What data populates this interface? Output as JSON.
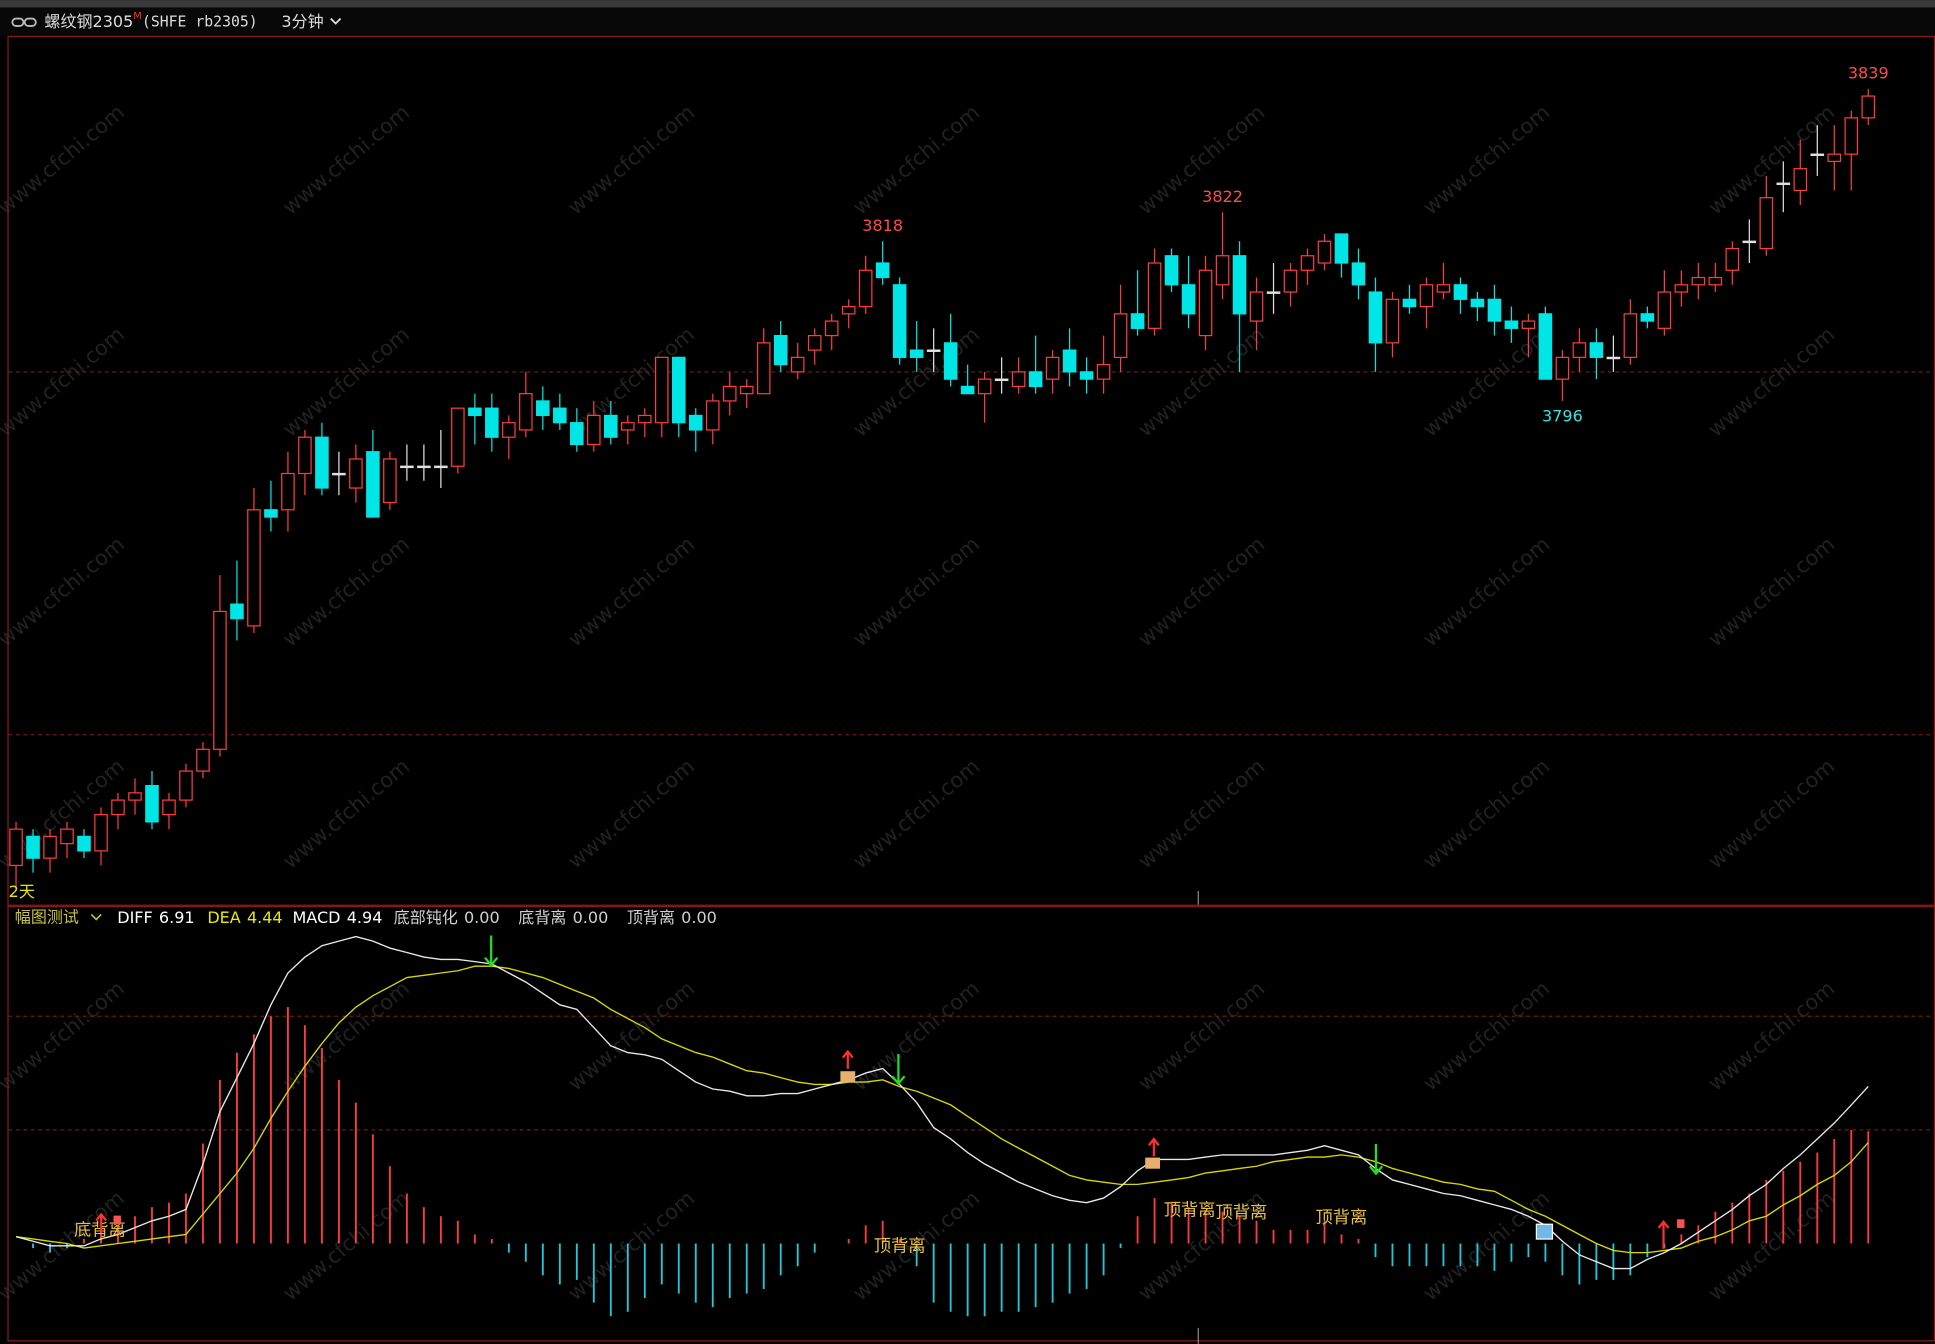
{
  "header": {
    "symbol": "螺纹钢2305",
    "badge": "M",
    "code": "(SHFE rb2305)",
    "period": "3分钟"
  },
  "watermark": "www.cfchi.com",
  "chart_data": [
    {
      "type": "candlestick",
      "corner_label": "2天",
      "ylim": [
        3726.6,
        3846.3
      ],
      "hlines": [
        3750,
        3800
      ],
      "up_color": "#ff3b3b",
      "down_color": "#00e5e5",
      "flat_color": "#e0e0e0",
      "candles": {
        "open": [
          3732,
          3736,
          3733,
          3735,
          3736,
          3734,
          3739,
          3741,
          3743,
          3739,
          3741,
          3745,
          3748,
          3768,
          3765,
          3781,
          3781,
          3786,
          3791,
          3786,
          3784,
          3789,
          3782,
          3787,
          3787,
          3787,
          3787,
          3795,
          3795,
          3791,
          3792,
          3796,
          3795,
          3793,
          3790,
          3794,
          3792,
          3793,
          3793,
          3802,
          3794,
          3792,
          3796,
          3797,
          3797,
          3805,
          3800,
          3803,
          3805,
          3808,
          3809,
          3815,
          3812,
          3803,
          3803,
          3804,
          3798,
          3797,
          3799,
          3798,
          3800,
          3799,
          3803,
          3800,
          3799,
          3802,
          3808,
          3806,
          3816,
          3812,
          3805,
          3812,
          3816,
          3807,
          3811,
          3811,
          3814,
          3815,
          3819,
          3815,
          3811,
          3804,
          3810,
          3809,
          3811,
          3812,
          3810,
          3810,
          3807,
          3806,
          3808,
          3799,
          3802,
          3804,
          3802,
          3802,
          3808,
          3806,
          3811,
          3812,
          3812,
          3814,
          3818,
          3817,
          3826,
          3825,
          3830,
          3829,
          3830,
          3835
        ],
        "high": [
          3738,
          3737,
          3737,
          3738,
          3737,
          3740,
          3742,
          3744,
          3745,
          3742,
          3746,
          3749,
          3772,
          3774,
          3784,
          3785,
          3789,
          3792,
          3793,
          3789,
          3790,
          3792,
          3789,
          3790,
          3790,
          3792,
          3795,
          3797,
          3797,
          3794,
          3800,
          3798,
          3797,
          3795,
          3796,
          3796,
          3794,
          3795,
          3802,
          3802,
          3795,
          3797,
          3800,
          3799,
          3806,
          3807,
          3804,
          3806,
          3808,
          3810,
          3816,
          3818,
          3813,
          3807,
          3806,
          3808,
          3801,
          3800,
          3802,
          3802,
          3805,
          3803,
          3806,
          3802,
          3805,
          3812,
          3814,
          3817,
          3817,
          3816,
          3816,
          3822,
          3818,
          3813,
          3815,
          3815,
          3817,
          3819,
          3819,
          3817,
          3813,
          3811,
          3812,
          3813,
          3815,
          3813,
          3811,
          3812,
          3809,
          3808,
          3809,
          3803,
          3806,
          3806,
          3805,
          3810,
          3809,
          3814,
          3814,
          3815,
          3815,
          3818,
          3821,
          3827,
          3829,
          3832,
          3834,
          3834,
          3836,
          3839
        ],
        "low": [
          3729,
          3731,
          3731,
          3733,
          3733,
          3732,
          3737,
          3739,
          3737,
          3737,
          3740,
          3744,
          3747,
          3763,
          3764,
          3778,
          3778,
          3783,
          3783,
          3783,
          3782,
          3780,
          3781,
          3785,
          3785,
          3784,
          3786,
          3790,
          3789,
          3788,
          3791,
          3792,
          3792,
          3789,
          3789,
          3790,
          3790,
          3791,
          3791,
          3791,
          3789,
          3790,
          3794,
          3795,
          3797,
          3800,
          3799,
          3801,
          3803,
          3806,
          3808,
          3812,
          3801,
          3800,
          3800,
          3798,
          3797,
          3793,
          3797,
          3797,
          3797,
          3797,
          3798,
          3797,
          3797,
          3800,
          3805,
          3805,
          3811,
          3806,
          3803,
          3810,
          3800,
          3803,
          3808,
          3809,
          3812,
          3814,
          3813,
          3810,
          3800,
          3802,
          3808,
          3806,
          3810,
          3808,
          3807,
          3805,
          3804,
          3802,
          3799,
          3796,
          3800,
          3799,
          3800,
          3801,
          3806,
          3805,
          3809,
          3810,
          3811,
          3812,
          3815,
          3816,
          3822,
          3823,
          3827,
          3825,
          3825,
          3834
        ],
        "close": [
          3737,
          3733,
          3736,
          3737,
          3734,
          3739,
          3741,
          3742,
          3738,
          3741,
          3745,
          3748,
          3767,
          3766,
          3781,
          3780,
          3786,
          3791,
          3784,
          3786,
          3788,
          3780,
          3788,
          3787,
          3787,
          3787,
          3795,
          3794,
          3791,
          3793,
          3797,
          3794,
          3793,
          3790,
          3794,
          3791,
          3793,
          3794,
          3802,
          3793,
          3792,
          3796,
          3798,
          3798,
          3804,
          3801,
          3802,
          3805,
          3807,
          3809,
          3814,
          3813,
          3802,
          3802,
          3803,
          3799,
          3797,
          3799,
          3799,
          3800,
          3798,
          3802,
          3800,
          3799,
          3801,
          3808,
          3806,
          3815,
          3812,
          3808,
          3814,
          3816,
          3808,
          3811,
          3811,
          3814,
          3816,
          3818,
          3815,
          3812,
          3804,
          3810,
          3809,
          3812,
          3812,
          3810,
          3809,
          3807,
          3806,
          3807,
          3799,
          3802,
          3804,
          3802,
          3802,
          3808,
          3807,
          3811,
          3812,
          3813,
          3813,
          3817,
          3818,
          3824,
          3826,
          3828,
          3830,
          3830,
          3835,
          3838
        ]
      },
      "extremes": [
        {
          "value": 3818,
          "kind": "high",
          "color": "#ff4a4a"
        },
        {
          "value": 3822,
          "kind": "high",
          "color": "#ff4a4a"
        },
        {
          "value": 3839,
          "kind": "high",
          "color": "#ff4a4a"
        },
        {
          "value": 3796,
          "kind": "low",
          "color": "#3fe0e0"
        }
      ]
    },
    {
      "type": "macd",
      "title": "幅图测试",
      "ylim": [
        -4.2,
        14.8
      ],
      "hlines": [
        0,
        5,
        10
      ],
      "stats": [
        {
          "name": "DIFF",
          "value": "6.91",
          "color": "#ffffff"
        },
        {
          "name": "DEA",
          "value": "4.44",
          "color": "#e8e800"
        },
        {
          "name": "MACD",
          "value": "4.94",
          "color": "#ffffff"
        },
        {
          "name": "底部钝化",
          "value": "0.00",
          "color": "#d0d0d0"
        },
        {
          "name": "底背离",
          "value": "0.00",
          "color": "#d0d0d0"
        },
        {
          "name": "顶背离",
          "value": "0.00",
          "color": "#d0d0d0"
        }
      ],
      "series": [
        {
          "name": "DIFF",
          "color": "#e8e8e8",
          "values": [
            0.3,
            0.1,
            -0.1,
            -0.1,
            -0.1,
            0.2,
            0.4,
            0.7,
            1.0,
            1.2,
            1.5,
            3.5,
            5.8,
            7.3,
            8.8,
            10.5,
            11.9,
            12.6,
            13.1,
            13.3,
            13.5,
            13.3,
            13.0,
            12.8,
            12.6,
            12.5,
            12.5,
            12.4,
            12.3,
            11.9,
            11.5,
            11.0,
            10.5,
            10.3,
            9.5,
            8.7,
            8.4,
            8.3,
            8.1,
            7.6,
            7.1,
            6.8,
            6.7,
            6.5,
            6.5,
            6.6,
            6.6,
            6.8,
            7.0,
            7.2,
            7.5,
            7.7,
            7.0,
            6.2,
            5.1,
            4.6,
            4.0,
            3.5,
            3.1,
            2.7,
            2.4,
            2.1,
            1.9,
            1.8,
            2.0,
            2.5,
            3.2,
            3.7,
            3.7,
            3.7,
            3.8,
            3.9,
            3.9,
            3.9,
            3.9,
            4.0,
            4.1,
            4.3,
            4.1,
            3.9,
            3.3,
            2.8,
            2.6,
            2.4,
            2.2,
            2.1,
            1.9,
            1.7,
            1.5,
            1.2,
            0.8,
            0.1,
            -0.5,
            -0.8,
            -1.1,
            -1.1,
            -0.7,
            -0.4,
            0.0,
            0.5,
            1.0,
            1.5,
            2.1,
            2.6,
            3.3,
            3.9,
            4.6,
            5.3,
            6.1,
            6.91
          ]
        },
        {
          "name": "DEA",
          "color": "#d8d800",
          "values": [
            0.3,
            0.2,
            0.1,
            0,
            -0.2,
            -0.1,
            0,
            0.1,
            0.2,
            0.3,
            0.4,
            1.3,
            2.2,
            3.1,
            4.2,
            5.5,
            6.7,
            7.8,
            8.8,
            9.7,
            10.4,
            10.9,
            11.3,
            11.7,
            11.8,
            11.9,
            12.0,
            12.2,
            12.2,
            12.1,
            11.9,
            11.7,
            11.4,
            11.1,
            10.8,
            10.3,
            9.9,
            9.5,
            9.0,
            8.7,
            8.4,
            8.2,
            7.9,
            7.6,
            7.5,
            7.3,
            7.1,
            7.0,
            7.0,
            7.1,
            7.1,
            7.2,
            6.9,
            6.7,
            6.4,
            6.1,
            5.6,
            5.1,
            4.6,
            4.2,
            3.8,
            3.4,
            3.0,
            2.8,
            2.7,
            2.6,
            2.6,
            2.7,
            2.8,
            2.9,
            3.1,
            3.2,
            3.3,
            3.4,
            3.6,
            3.7,
            3.8,
            3.8,
            3.9,
            3.8,
            3.6,
            3.3,
            3.1,
            2.9,
            2.7,
            2.6,
            2.4,
            2.3,
            1.9,
            1.5,
            1.2,
            0.8,
            0.4,
            0.0,
            -0.3,
            -0.4,
            -0.4,
            -0.3,
            -0.2,
            0.1,
            0.3,
            0.6,
            1.0,
            1.2,
            1.7,
            2.1,
            2.6,
            3.0,
            3.6,
            4.44
          ]
        },
        {
          "name": "MACD",
          "up_color": "#ff3b3b",
          "down_color": "#22c8d8",
          "values": [
            0,
            -0.2,
            -0.4,
            -0.2,
            0.2,
            0.6,
            0.8,
            1.2,
            1.6,
            1.8,
            2.2,
            4.4,
            7.2,
            8.4,
            9.2,
            10.0,
            10.4,
            9.6,
            8.6,
            7.2,
            6.2,
            4.8,
            3.4,
            2.2,
            1.6,
            1.2,
            1.0,
            0.4,
            0.2,
            -0.4,
            -0.8,
            -1.4,
            -1.8,
            -1.6,
            -2.6,
            -3.2,
            -3.0,
            -2.4,
            -1.8,
            -2.2,
            -2.6,
            -2.8,
            -2.4,
            -2.2,
            -2.0,
            -1.4,
            -1.0,
            -0.4,
            0,
            0.2,
            0.8,
            1.0,
            0.2,
            -1.0,
            -2.6,
            -3.0,
            -3.2,
            -3.2,
            -3.0,
            -3.0,
            -2.8,
            -2.6,
            -2.2,
            -2.0,
            -1.4,
            -0.2,
            1.2,
            2.0,
            1.8,
            1.6,
            1.4,
            1.4,
            1.2,
            1.0,
            0.6,
            0.6,
            0.6,
            1.0,
            0.4,
            0.2,
            -0.6,
            -1.0,
            -1.0,
            -1.0,
            -1.0,
            -1.0,
            -1.0,
            -1.2,
            -0.8,
            -0.6,
            -0.8,
            -1.4,
            -1.8,
            -1.6,
            -1.6,
            -1.4,
            -0.6,
            -0.2,
            0.4,
            0.8,
            1.4,
            1.8,
            2.2,
            2.8,
            3.2,
            3.6,
            4.0,
            4.6,
            5.0,
            4.94
          ]
        }
      ],
      "signals": [
        "底背离",
        "顶背离",
        "顶背离",
        "顶背离",
        "顶背离"
      ]
    }
  ]
}
